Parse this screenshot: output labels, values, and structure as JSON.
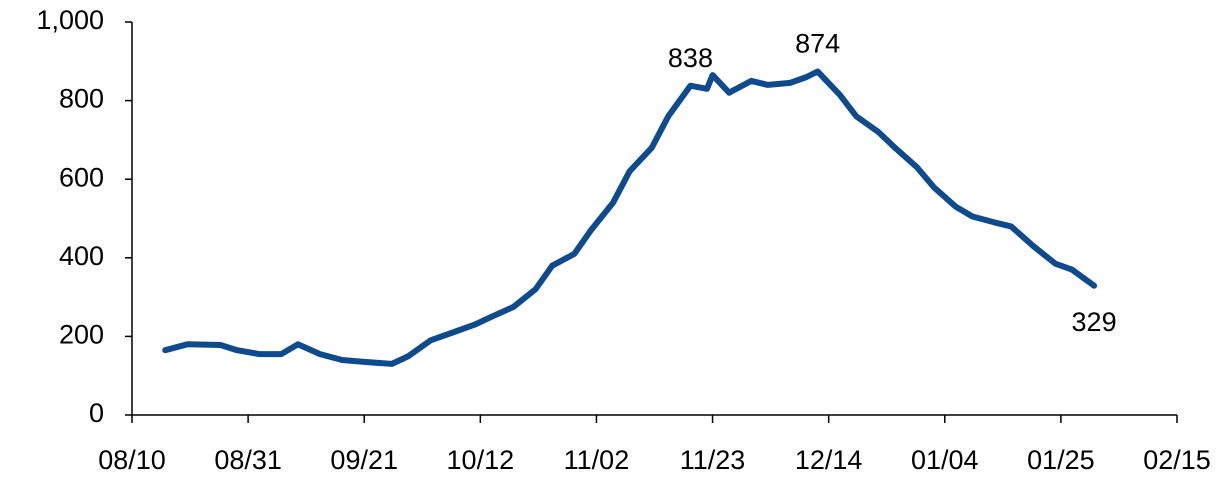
{
  "chart_data": {
    "type": "line",
    "x": [
      "08/16",
      "08/20",
      "08/26",
      "08/29",
      "09/02",
      "09/06",
      "09/09",
      "09/13",
      "09/17",
      "09/21",
      "09/26",
      "09/29",
      "10/03",
      "10/07",
      "10/11",
      "10/14",
      "10/18",
      "10/22",
      "10/25",
      "10/29",
      "11/01",
      "11/05",
      "11/08",
      "11/12",
      "11/15",
      "11/19",
      "11/22",
      "11/23",
      "11/26",
      "11/30",
      "12/03",
      "12/07",
      "12/10",
      "12/12",
      "12/16",
      "12/19",
      "12/23",
      "12/26",
      "12/30",
      "01/02",
      "01/06",
      "01/09",
      "01/13",
      "01/16",
      "01/20",
      "01/24",
      "01/27",
      "01/31"
    ],
    "values": [
      165,
      180,
      178,
      165,
      155,
      155,
      180,
      155,
      140,
      135,
      130,
      150,
      190,
      210,
      230,
      250,
      275,
      320,
      380,
      410,
      470,
      540,
      620,
      680,
      760,
      838,
      830,
      865,
      820,
      850,
      840,
      845,
      860,
      874,
      815,
      760,
      720,
      680,
      630,
      580,
      530,
      505,
      490,
      480,
      430,
      385,
      370,
      329
    ],
    "value_labels": [
      null,
      null,
      null,
      null,
      null,
      null,
      null,
      null,
      null,
      null,
      null,
      null,
      null,
      null,
      null,
      null,
      null,
      null,
      null,
      null,
      null,
      null,
      null,
      null,
      null,
      "838",
      null,
      null,
      null,
      null,
      null,
      null,
      null,
      "874",
      null,
      null,
      null,
      null,
      null,
      null,
      null,
      null,
      null,
      null,
      null,
      null,
      null,
      "329"
    ],
    "color": "#0d4a8e",
    "xlim": [
      "08/10",
      "02/15"
    ],
    "xticks": [
      "08/10",
      "08/31",
      "09/21",
      "10/12",
      "11/02",
      "11/23",
      "12/14",
      "01/04",
      "01/25",
      "02/15"
    ],
    "ylim": [
      0,
      1000
    ],
    "yticks": [
      0,
      200,
      400,
      600,
      800,
      {
        "value": 1000,
        "label": "1,000"
      }
    ],
    "grid": false
  }
}
